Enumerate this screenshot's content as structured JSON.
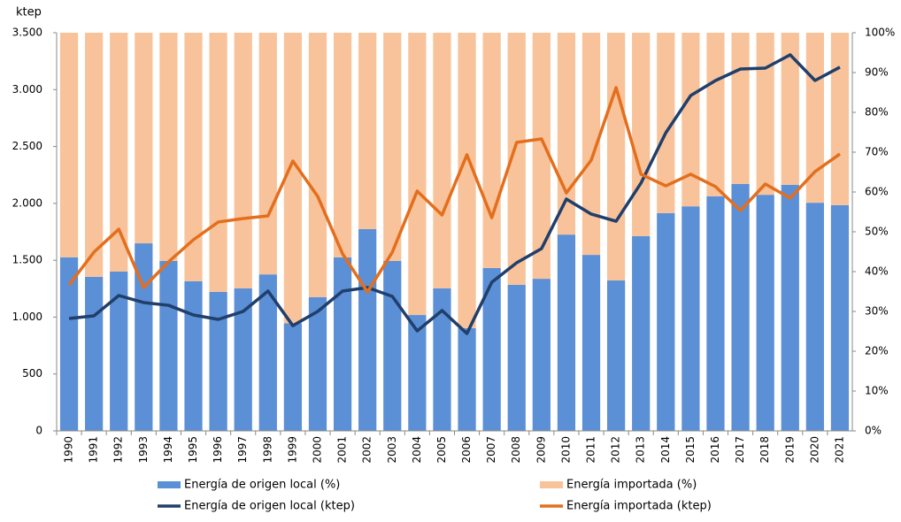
{
  "chart_data": {
    "type": "combo",
    "y_label": "ktep",
    "categories": [
      "1990",
      "1991",
      "1992",
      "1993",
      "1994",
      "1995",
      "1996",
      "1997",
      "1998",
      "1999",
      "2000",
      "2001",
      "2002",
      "2003",
      "2004",
      "2005",
      "2006",
      "2007",
      "2008",
      "2009",
      "2010",
      "2011",
      "2012",
      "2013",
      "2014",
      "2015",
      "2016",
      "2017",
      "2018",
      "2019",
      "2020",
      "2021"
    ],
    "ylim": [
      0,
      3500
    ],
    "yticks": [
      0,
      500,
      {
        "value": 1000,
        "label": "1.000"
      },
      {
        "value": 1500,
        "label": "1.500"
      },
      {
        "value": 2000,
        "label": "2.000"
      },
      {
        "value": 2500,
        "label": "2.500"
      },
      {
        "value": 3000,
        "label": "3.000"
      },
      {
        "value": 3500,
        "label": "3.500"
      }
    ],
    "y2lim": [
      0,
      100
    ],
    "y2ticks": [
      {
        "value": 0,
        "label": "0%"
      },
      {
        "value": 10,
        "label": "10%"
      },
      {
        "value": 20,
        "label": "20%"
      },
      {
        "value": 30,
        "label": "30%"
      },
      {
        "value": 40,
        "label": "40%"
      },
      {
        "value": 50,
        "label": "50%"
      },
      {
        "value": 60,
        "label": "60%"
      },
      {
        "value": 70,
        "label": "70%"
      },
      {
        "value": 80,
        "label": "80%"
      },
      {
        "value": 90,
        "label": "90%"
      },
      {
        "value": 100,
        "label": "100%"
      }
    ],
    "series": [
      {
        "name": "Energía de origen local (%)",
        "type": "bar",
        "axis": "y2",
        "color": "#5b8fd6",
        "values": [
          43.6,
          38.7,
          40.0,
          47.1,
          42.7,
          37.6,
          34.9,
          35.8,
          39.3,
          27.0,
          33.6,
          43.6,
          50.7,
          42.7,
          29.1,
          35.8,
          25.8,
          40.9,
          36.7,
          38.2,
          49.3,
          44.2,
          37.8,
          48.9,
          54.7,
          56.4,
          58.9,
          62.0,
          59.3,
          61.8,
          57.3,
          56.7
        ]
      },
      {
        "name": "Energía importada (%)",
        "type": "bar",
        "axis": "y2",
        "color": "#f8c39a",
        "values": [
          56.4,
          61.3,
          60.0,
          52.9,
          57.3,
          62.4,
          65.1,
          64.2,
          60.7,
          73.0,
          66.4,
          56.4,
          49.3,
          57.3,
          70.9,
          64.2,
          74.2,
          59.1,
          63.3,
          61.8,
          50.7,
          55.8,
          62.2,
          51.1,
          45.3,
          43.6,
          41.1,
          38.0,
          40.7,
          38.2,
          42.7,
          43.3
        ]
      },
      {
        "name": "Energía de origen local (ktep)",
        "type": "line",
        "color": "#203f6b",
        "values": [
          988,
          1011,
          1190,
          1128,
          1104,
          1019,
          980,
          1050,
          1229,
          925,
          1050,
          1229,
          1260,
          1182,
          879,
          1058,
          856,
          1307,
          1478,
          1602,
          2038,
          1906,
          1843,
          2178,
          2621,
          2948,
          3080,
          3181,
          3189,
          3306,
          3080,
          3197
        ]
      },
      {
        "name": "Energía importada (ktep)",
        "type": "line",
        "color": "#e36f1e",
        "values": [
          1283,
          1571,
          1773,
          1260,
          1486,
          1680,
          1836,
          1867,
          1890,
          2372,
          2061,
          1556,
          1221,
          1571,
          2108,
          1898,
          2427,
          1874,
          2536,
          2567,
          2092,
          2380,
          3018,
          2256,
          2154,
          2256,
          2147,
          1937,
          2170,
          2046,
          2279,
          2434
        ]
      }
    ]
  }
}
